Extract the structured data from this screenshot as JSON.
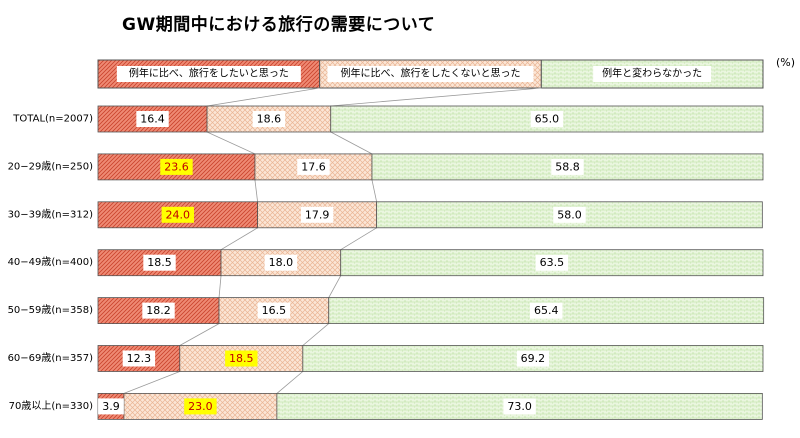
{
  "title": "GW期間中における旅行の需要について",
  "unit_label": "(%)",
  "colors": {
    "more": "#e8705a",
    "less": "#f7d3b8",
    "same": "#d4eec0",
    "highlight": "#ffff00",
    "highlight_text": "#c00000",
    "stroke": "#555555"
  },
  "chart_data": {
    "type": "bar",
    "orientation": "horizontal",
    "stacked": true,
    "percent": true,
    "xlim": [
      0,
      100
    ],
    "legend_position": "top",
    "categories": [
      "TOTAL(n=2007)",
      "20−29歳(n=250)",
      "30−39歳(n=312)",
      "40−49歳(n=400)",
      "50−59歳(n=358)",
      "60−69歳(n=357)",
      "70歳以上(n=330)"
    ],
    "series": [
      {
        "name": "例年に比べ、旅行をしたいと思った",
        "values": [
          16.4,
          23.6,
          24.0,
          18.5,
          18.2,
          12.3,
          3.9
        ]
      },
      {
        "name": "例年に比べ、旅行をしたくないと思った",
        "values": [
          18.6,
          17.6,
          17.9,
          18.0,
          16.5,
          18.5,
          23.0
        ]
      },
      {
        "name": "例年と変わらなかった",
        "values": [
          65.0,
          58.8,
          58.0,
          63.5,
          65.4,
          69.2,
          73.0
        ]
      }
    ],
    "value_labels": [
      [
        "16.4",
        "18.6",
        "65.0"
      ],
      [
        "23.6",
        "17.6",
        "58.8"
      ],
      [
        "24.0",
        "17.9",
        "58.0"
      ],
      [
        "18.5",
        "18.0",
        "63.5"
      ],
      [
        "18.2",
        "16.5",
        "65.4"
      ],
      [
        "12.3",
        "18.5",
        "69.2"
      ],
      [
        "3.9",
        "23.0",
        "73.0"
      ]
    ],
    "highlighted": [
      [
        1,
        0
      ],
      [
        2,
        0
      ],
      [
        5,
        1
      ],
      [
        6,
        1
      ]
    ]
  }
}
